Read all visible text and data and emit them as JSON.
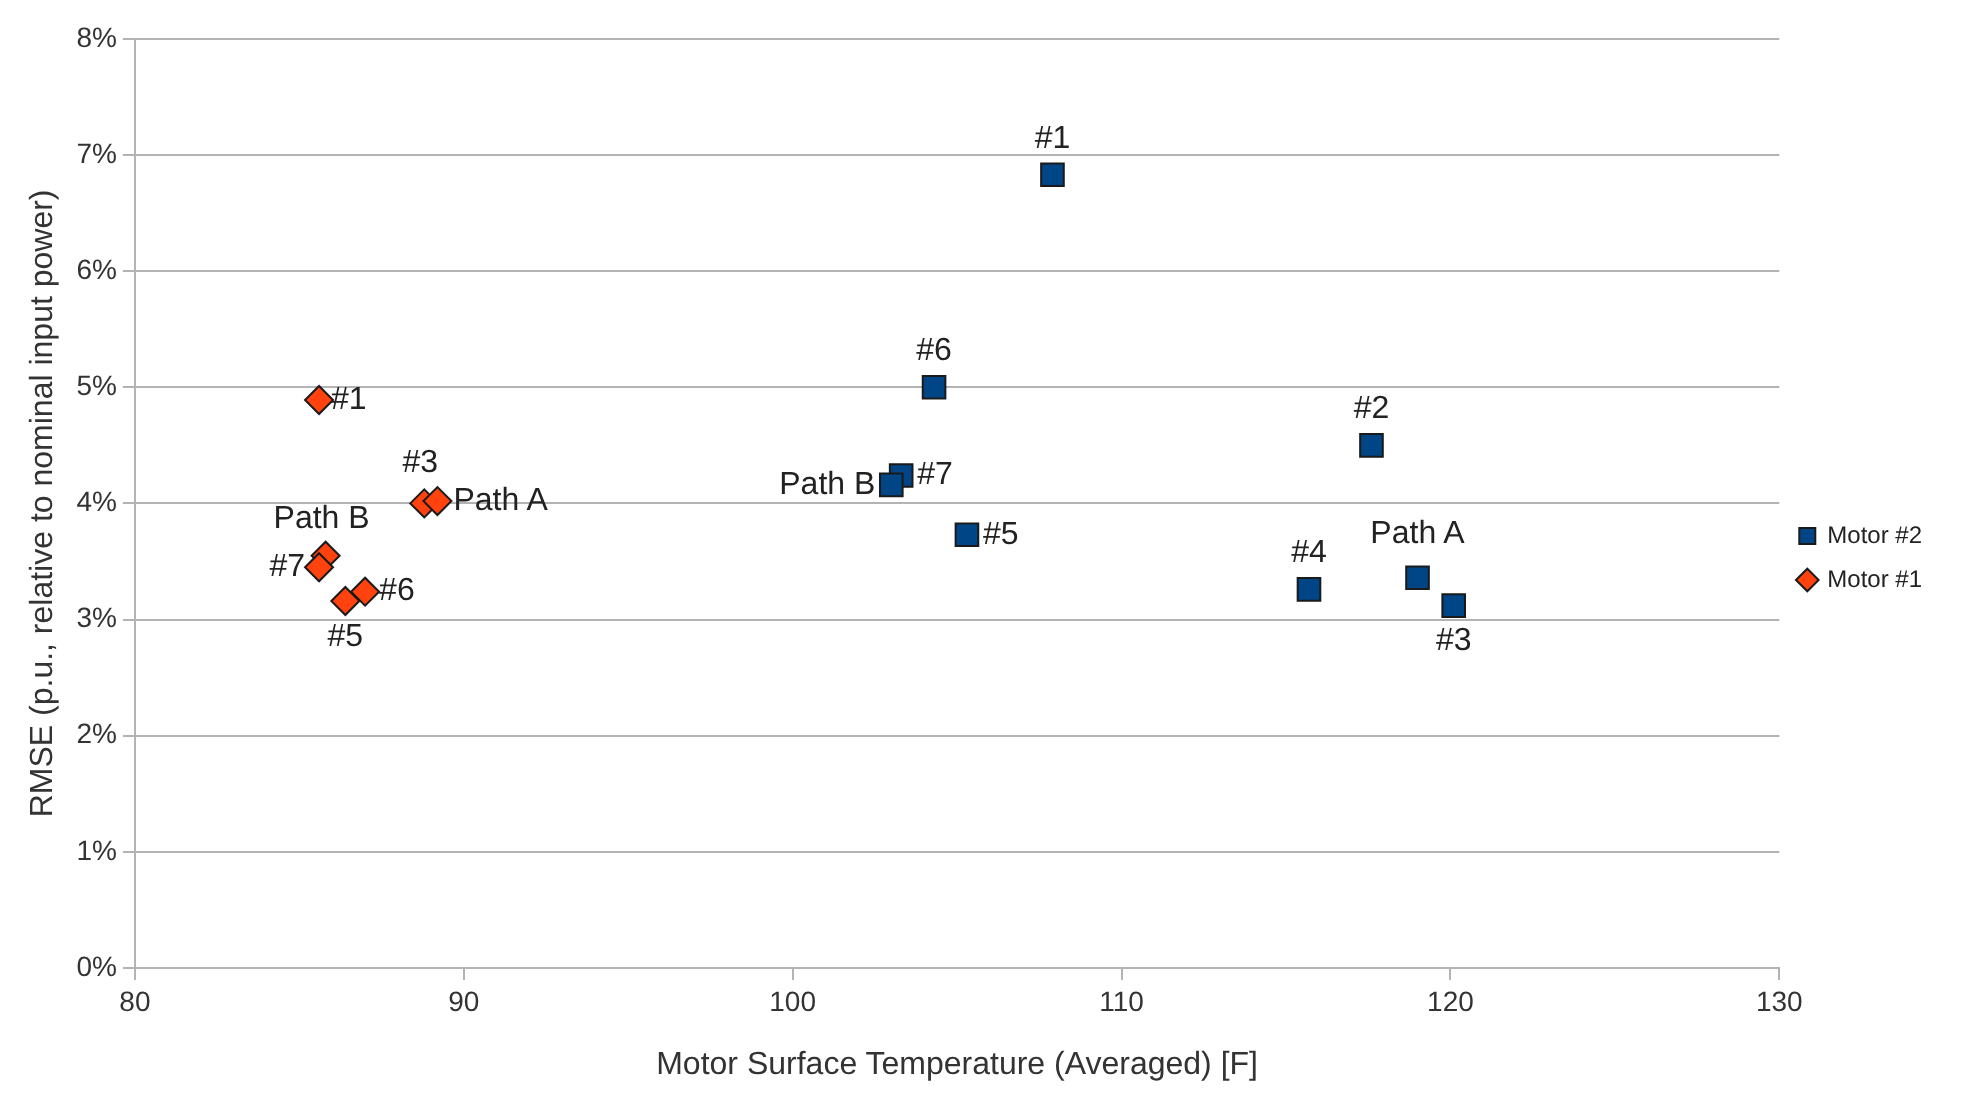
{
  "chart_data": {
    "type": "scatter",
    "xlabel": "Motor Surface Temperature (Averaged) [F]",
    "ylabel": "RMSE (p.u., relative to nominal input power)",
    "series": [
      {
        "name": "Motor #2",
        "color": "#004586",
        "marker": "square",
        "x": [
          107.9,
          104.3,
          117.6,
          103.3,
          103.0,
          105.3,
          115.7,
          119.0,
          120.1
        ],
        "values": [
          6.83,
          5.0,
          4.5,
          4.24,
          4.16,
          3.73,
          3.26,
          3.36,
          3.12
        ]
      },
      {
        "name": "Motor #1",
        "color": "#ff420e",
        "marker": "diamond",
        "x": [
          85.6,
          88.8,
          89.2,
          85.8,
          85.6,
          87.0,
          86.4
        ],
        "values": [
          4.89,
          4.0,
          4.02,
          3.55,
          3.45,
          3.24,
          3.16
        ]
      }
    ],
    "annotations": [
      {
        "text": "#1",
        "x": 107.9,
        "y": 6.83
      },
      {
        "text": "#6",
        "x": 104.3,
        "y": 5.0
      },
      {
        "text": "#2",
        "x": 117.6,
        "y": 4.5
      },
      {
        "text": "#7",
        "x": 103.3,
        "y": 4.24
      },
      {
        "text": "Path B",
        "x": 103.0,
        "y": 4.16
      },
      {
        "text": "#5",
        "x": 105.3,
        "y": 3.73
      },
      {
        "text": "#4",
        "x": 115.7,
        "y": 3.26
      },
      {
        "text": "Path A",
        "x": 119.0,
        "y": 3.36
      },
      {
        "text": "#3",
        "x": 120.1,
        "y": 3.12
      },
      {
        "text": "#1",
        "x": 85.6,
        "y": 4.89
      },
      {
        "text": "#3",
        "x": 88.8,
        "y": 4.0
      },
      {
        "text": "Path A",
        "x": 89.2,
        "y": 4.02
      },
      {
        "text": "Path B",
        "x": 85.8,
        "y": 3.55
      },
      {
        "text": "#7",
        "x": 85.6,
        "y": 3.45
      },
      {
        "text": "#6",
        "x": 87.0,
        "y": 3.24
      },
      {
        "text": "#5",
        "x": 86.4,
        "y": 3.16
      }
    ],
    "xlim": [
      80,
      130
    ],
    "xticks": [
      80,
      90,
      100,
      110,
      120,
      130
    ],
    "ylim": [
      0,
      8
    ],
    "yticks": [
      {
        "value": 0,
        "label": "0%"
      },
      {
        "value": 1,
        "label": "1%"
      },
      {
        "value": 2,
        "label": "2%"
      },
      {
        "value": 3,
        "label": "3%"
      },
      {
        "value": 4,
        "label": "4%"
      },
      {
        "value": 5,
        "label": "5%"
      },
      {
        "value": 6,
        "label": "6%"
      },
      {
        "value": 7,
        "label": "7%"
      },
      {
        "value": 8,
        "label": "8%"
      }
    ],
    "grid": "y",
    "legend": "right"
  }
}
